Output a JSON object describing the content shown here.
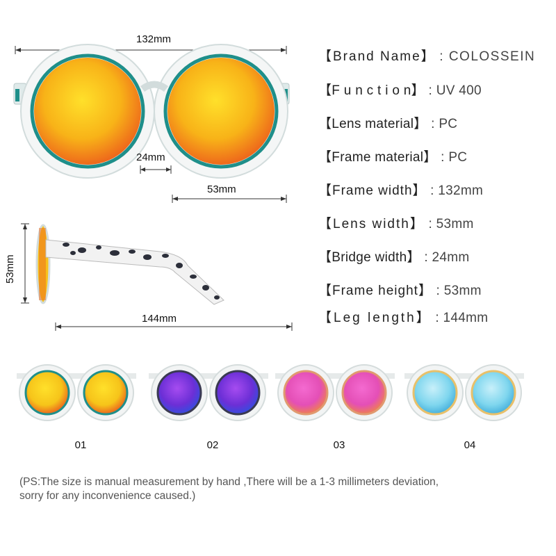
{
  "dimensions": {
    "width": "132mm",
    "bridge": "24mm",
    "lens": "53mm",
    "height": "53mm",
    "leg": "144mm"
  },
  "specs": [
    {
      "key": "【Brand Name】",
      "value": ": COLOSSEIN"
    },
    {
      "key": "【F u n c t i o n】",
      "value": ": UV 400"
    },
    {
      "key": "【Lens material】",
      "value": ": PC"
    },
    {
      "key": "【Frame material】",
      "value": ": PC"
    },
    {
      "key": "【Frame width】",
      "value": ": 132mm"
    },
    {
      "key": "【Lens width】",
      "value": ": 53mm"
    },
    {
      "key": "【Bridge width】",
      "value": ": 24mm"
    },
    {
      "key": "【Frame height】",
      "value": ": 53mm"
    },
    {
      "key": "【Leg length】",
      "value": ": 144mm"
    }
  ],
  "variants": [
    {
      "label": "01",
      "lens_color": "#f6c41a",
      "lens_edge": "#e8501e"
    },
    {
      "label": "02",
      "lens_color": "#6c2fd6",
      "lens_edge": "#2a52e0"
    },
    {
      "label": "03",
      "lens_color": "#e44fb6",
      "lens_edge": "#f08a3a"
    },
    {
      "label": "04",
      "lens_color": "#7fd6ee",
      "lens_edge": "#3aa8d8"
    }
  ],
  "note": "(PS:The size is manual measurement by hand ,There will be a 1-3 millimeters deviation,\nsorry for any inconvenience caused.)",
  "colors": {
    "frame_rim": "#1f8f8a",
    "lens_main": "#f7c61b",
    "lens_warm": "#ef6a1f"
  }
}
